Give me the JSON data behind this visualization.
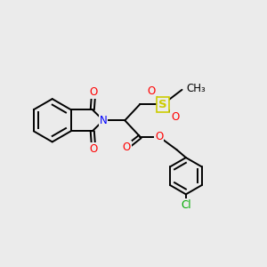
{
  "background_color": "#ebebeb",
  "bond_color": "#000000",
  "nitrogen_color": "#0000ff",
  "oxygen_color": "#ff0000",
  "sulfur_color": "#cccc00",
  "chlorine_color": "#00aa00",
  "figsize": [
    3.0,
    3.0
  ],
  "dpi": 100,
  "xlim": [
    0,
    10
  ],
  "ylim": [
    0,
    10
  ]
}
